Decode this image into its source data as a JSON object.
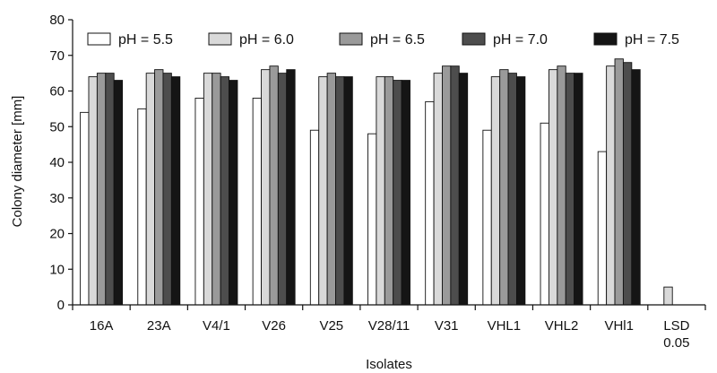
{
  "chart_data": {
    "type": "bar",
    "xlabel": "Isolates",
    "ylabel": "Colony diameter [mm]",
    "ylim": [
      0,
      80
    ],
    "yticks": [
      0,
      10,
      20,
      30,
      40,
      50,
      60,
      70,
      80
    ],
    "grid": false,
    "legend_position": "top",
    "categories": [
      [
        "16A"
      ],
      [
        "23A"
      ],
      [
        "V4/1"
      ],
      [
        "V26"
      ],
      [
        "V25"
      ],
      [
        "V28/11"
      ],
      [
        "V31"
      ],
      [
        "VHL1"
      ],
      [
        "VHL2"
      ],
      [
        "VHl1"
      ],
      [
        "LSD",
        "0.05"
      ]
    ],
    "series": [
      {
        "name": "pH = 5.5",
        "color": "#ffffff",
        "values": [
          54,
          55,
          58,
          58,
          49,
          48,
          57,
          49,
          51,
          43,
          null
        ]
      },
      {
        "name": "pH = 6.0",
        "color": "#d9d9d9",
        "values": [
          64,
          65,
          65,
          66,
          64,
          64,
          65,
          64,
          66,
          67,
          5
        ]
      },
      {
        "name": "pH = 6.5",
        "color": "#9a9a9a",
        "values": [
          65,
          66,
          65,
          67,
          65,
          64,
          67,
          66,
          67,
          69,
          null
        ]
      },
      {
        "name": "pH = 7.0",
        "color": "#4d4d4d",
        "values": [
          65,
          65,
          64,
          65,
          64,
          63,
          67,
          65,
          65,
          68,
          null
        ]
      },
      {
        "name": "pH = 7.5",
        "color": "#151515",
        "values": [
          63,
          64,
          63,
          66,
          64,
          63,
          65,
          64,
          65,
          66,
          null
        ]
      }
    ]
  }
}
